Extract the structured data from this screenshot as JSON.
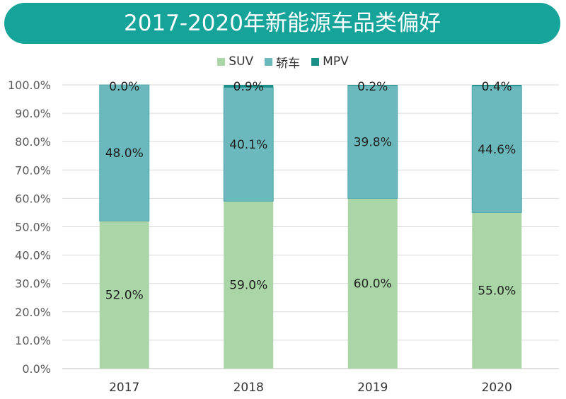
{
  "chart_data": {
    "type": "bar",
    "stacked": true,
    "title": "2017-2020年新能源车品类偏好",
    "categories": [
      "2017",
      "2018",
      "2019",
      "2020"
    ],
    "series": [
      {
        "name": "SUV",
        "values": [
          52.0,
          59.0,
          60.0,
          55.0
        ],
        "color": "#a9d5a7"
      },
      {
        "name": "轿车",
        "values": [
          48.0,
          40.1,
          39.8,
          44.6
        ],
        "color": "#6bb9bd"
      },
      {
        "name": "MPV",
        "values": [
          0.0,
          0.9,
          0.2,
          0.4
        ],
        "color": "#1a8f88"
      }
    ],
    "data_labels": [
      [
        "52.0%",
        "59.0%",
        "60.0%",
        "55.0%"
      ],
      [
        "48.0%",
        "40.1%",
        "39.8%",
        "44.6%"
      ],
      [
        "0.0%",
        "0.9%",
        "0.2%",
        "0.4%"
      ]
    ],
    "ylim": [
      0,
      100
    ],
    "y_ticks": [
      "0.0%",
      "10.0%",
      "20.0%",
      "30.0%",
      "40.0%",
      "50.0%",
      "60.0%",
      "70.0%",
      "80.0%",
      "90.0%",
      "100.0%"
    ],
    "grid": true,
    "legend_position": "top",
    "banner_color": "#16a39a"
  }
}
